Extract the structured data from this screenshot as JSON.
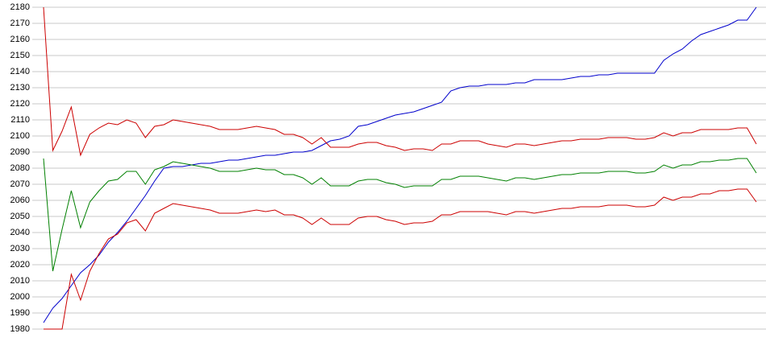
{
  "chart_data": {
    "type": "line",
    "categories": [
      null,
      null,
      null,
      null,
      null,
      null,
      null,
      null,
      null,
      null,
      null,
      null,
      null,
      null,
      null,
      null,
      null,
      null,
      null,
      null,
      null,
      null,
      null,
      null,
      null,
      null,
      null,
      null,
      null,
      null,
      null,
      null,
      null,
      null,
      null,
      null,
      null,
      null,
      null,
      null,
      null,
      null,
      null,
      null,
      null,
      null,
      null,
      null,
      null,
      null,
      null,
      null,
      null,
      null,
      null,
      null,
      null,
      null,
      null,
      null,
      null,
      null,
      null,
      null,
      null,
      null,
      null,
      null,
      null,
      null,
      null,
      null,
      null,
      null,
      null,
      null,
      null,
      null
    ],
    "ylim": [
      1980,
      2180
    ],
    "yticks": [
      1980,
      1990,
      2000,
      2010,
      2020,
      2030,
      2040,
      2050,
      2060,
      2070,
      2080,
      2090,
      2100,
      2110,
      2120,
      2130,
      2140,
      2150,
      2160,
      2170,
      2180
    ],
    "grid": true,
    "series": [
      {
        "color": "#0000cc",
        "values": [
          1984,
          1993,
          1999,
          2007,
          2015,
          2020,
          2026,
          2034,
          2040,
          2047,
          2055,
          2063,
          2072,
          2080,
          2081,
          2081,
          2082,
          2083,
          2083,
          2084,
          2085,
          2085,
          2086,
          2087,
          2088,
          2088,
          2089,
          2090,
          2090,
          2091,
          2094,
          2097,
          2098,
          2100,
          2106,
          2107,
          2109,
          2111,
          2113,
          2114,
          2115,
          2117,
          2119,
          2121,
          2128,
          2130,
          2131,
          2131,
          2132,
          2132,
          2132,
          2133,
          2133,
          2135,
          2135,
          2135,
          2135,
          2136,
          2137,
          2137,
          2138,
          2138,
          2139,
          2139,
          2139,
          2139,
          2139,
          2147,
          2151,
          2154,
          2159,
          2163,
          2165,
          2167,
          2169,
          2172,
          2172,
          2180
        ]
      },
      {
        "color": "#cc0000",
        "values": [
          2180,
          2091,
          2103,
          2118,
          2088,
          2101,
          2105,
          2108,
          2107,
          2110,
          2108,
          2099,
          2106,
          2107,
          2110,
          2109,
          2108,
          2107,
          2106,
          2104,
          2104,
          2104,
          2105,
          2106,
          2105,
          2104,
          2101,
          2101,
          2099,
          2095,
          2099,
          2093,
          2093,
          2093,
          2095,
          2096,
          2096,
          2094,
          2093,
          2091,
          2092,
          2092,
          2091,
          2095,
          2095,
          2097,
          2097,
          2097,
          2095,
          2094,
          2093,
          2095,
          2095,
          2094,
          2095,
          2096,
          2097,
          2097,
          2098,
          2098,
          2098,
          2099,
          2099,
          2099,
          2098,
          2098,
          2099,
          2102,
          2100,
          2102,
          2102,
          2104,
          2104,
          2104,
          2104,
          2105,
          2105,
          2095
        ]
      },
      {
        "color": "#008000",
        "values": [
          2086,
          2016,
          2042,
          2066,
          2043,
          2059,
          2066,
          2072,
          2073,
          2078,
          2078,
          2070,
          2079,
          2081,
          2084,
          2083,
          2082,
          2081,
          2080,
          2078,
          2078,
          2078,
          2079,
          2080,
          2079,
          2079,
          2076,
          2076,
          2074,
          2070,
          2074,
          2069,
          2069,
          2069,
          2072,
          2073,
          2073,
          2071,
          2070,
          2068,
          2069,
          2069,
          2069,
          2073,
          2073,
          2075,
          2075,
          2075,
          2074,
          2073,
          2072,
          2074,
          2074,
          2073,
          2074,
          2075,
          2076,
          2076,
          2077,
          2077,
          2077,
          2078,
          2078,
          2078,
          2077,
          2077,
          2078,
          2082,
          2080,
          2082,
          2082,
          2084,
          2084,
          2085,
          2085,
          2086,
          2086,
          2077
        ]
      },
      {
        "color": "#cc0000",
        "values": [
          1980,
          1980,
          1980,
          2014,
          1998,
          2016,
          2027,
          2036,
          2039,
          2046,
          2048,
          2041,
          2052,
          2055,
          2058,
          2057,
          2056,
          2055,
          2054,
          2052,
          2052,
          2052,
          2053,
          2054,
          2053,
          2054,
          2051,
          2051,
          2049,
          2045,
          2049,
          2045,
          2045,
          2045,
          2049,
          2050,
          2050,
          2048,
          2047,
          2045,
          2046,
          2046,
          2047,
          2051,
          2051,
          2053,
          2053,
          2053,
          2053,
          2052,
          2051,
          2053,
          2053,
          2052,
          2053,
          2054,
          2055,
          2055,
          2056,
          2056,
          2056,
          2057,
          2057,
          2057,
          2056,
          2056,
          2057,
          2062,
          2060,
          2062,
          2062,
          2064,
          2064,
          2066,
          2066,
          2067,
          2067,
          2059
        ]
      }
    ]
  }
}
